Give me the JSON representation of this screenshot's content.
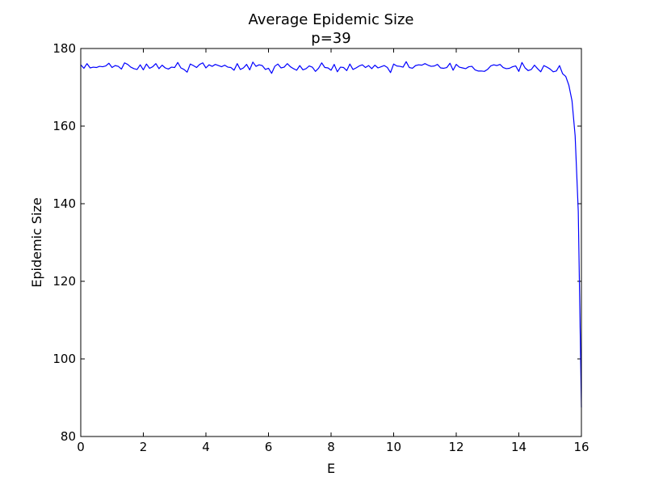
{
  "chart_data": {
    "type": "line",
    "title": "Average Epidemic Size",
    "subtitle": "p=39",
    "xlabel": "E",
    "ylabel": "Epidemic Size",
    "xlim": [
      0,
      16
    ],
    "ylim": [
      80,
      180
    ],
    "xticks": [
      0,
      2,
      4,
      6,
      8,
      10,
      12,
      14,
      16
    ],
    "yticks": [
      80,
      100,
      120,
      140,
      160,
      180
    ],
    "grid": false,
    "legend": "none",
    "series": [
      {
        "color": "#0000ff",
        "x": [
          0.0,
          0.1,
          0.2,
          0.3,
          0.4,
          0.5,
          0.6,
          0.7,
          0.8,
          0.9,
          1.0,
          1.1,
          1.2,
          1.3,
          1.4,
          1.5,
          1.6,
          1.7,
          1.8,
          1.9,
          2.0,
          2.1,
          2.2,
          2.3,
          2.4,
          2.5,
          2.6,
          2.7,
          2.8,
          2.9,
          3.0,
          3.1,
          3.2,
          3.3,
          3.4,
          3.5,
          3.6,
          3.7,
          3.8,
          3.9,
          4.0,
          4.1,
          4.2,
          4.3,
          4.4,
          4.5,
          4.6,
          4.7,
          4.8,
          4.9,
          5.0,
          5.1,
          5.2,
          5.3,
          5.4,
          5.5,
          5.6,
          5.7,
          5.8,
          5.9,
          6.0,
          6.1,
          6.2,
          6.3,
          6.4,
          6.5,
          6.6,
          6.7,
          6.8,
          6.9,
          7.0,
          7.1,
          7.2,
          7.3,
          7.4,
          7.5,
          7.6,
          7.7,
          7.8,
          7.9,
          8.0,
          8.1,
          8.2,
          8.3,
          8.4,
          8.5,
          8.6,
          8.7,
          8.8,
          8.9,
          9.0,
          9.1,
          9.2,
          9.3,
          9.4,
          9.5,
          9.6,
          9.7,
          9.8,
          9.9,
          10.0,
          10.1,
          10.2,
          10.3,
          10.4,
          10.5,
          10.6,
          10.7,
          10.8,
          10.9,
          11.0,
          11.1,
          11.2,
          11.3,
          11.4,
          11.5,
          11.6,
          11.7,
          11.8,
          11.9,
          12.0,
          12.1,
          12.2,
          12.3,
          12.4,
          12.5,
          12.6,
          12.7,
          12.8,
          12.9,
          13.0,
          13.1,
          13.2,
          13.3,
          13.4,
          13.5,
          13.6,
          13.7,
          13.8,
          13.9,
          14.0,
          14.1,
          14.2,
          14.3,
          14.4,
          14.5,
          14.6,
          14.7,
          14.8,
          14.9,
          15.0,
          15.1,
          15.2,
          15.3,
          15.4,
          15.5,
          15.6,
          15.7,
          15.8,
          15.9,
          16.0
        ],
        "y": [
          175.8,
          174.9,
          176.1,
          175.0,
          175.2,
          175.1,
          175.4,
          175.3,
          175.5,
          176.2,
          175.1,
          175.6,
          175.4,
          174.7,
          176.3,
          175.9,
          175.2,
          174.8,
          174.6,
          175.8,
          174.5,
          176.0,
          174.9,
          175.3,
          176.1,
          174.8,
          175.7,
          175.0,
          174.7,
          175.2,
          175.1,
          176.4,
          175.0,
          174.6,
          173.9,
          176.0,
          175.6,
          175.1,
          175.9,
          176.3,
          175.0,
          175.8,
          175.4,
          175.9,
          175.6,
          175.3,
          175.7,
          175.2,
          175.1,
          174.4,
          176.1,
          174.6,
          175.0,
          175.9,
          174.5,
          176.5,
          175.4,
          175.8,
          175.6,
          174.6,
          174.9,
          173.6,
          175.4,
          176.0,
          175.0,
          175.2,
          176.1,
          175.3,
          174.8,
          174.4,
          175.6,
          174.5,
          174.8,
          175.5,
          175.2,
          174.1,
          174.9,
          176.3,
          175.1,
          175.0,
          174.4,
          175.9,
          174.0,
          175.2,
          175.1,
          174.3,
          176.0,
          174.6,
          175.0,
          175.5,
          175.8,
          175.1,
          175.6,
          174.8,
          175.7,
          175.0,
          175.3,
          175.6,
          175.1,
          173.8,
          176.0,
          175.5,
          175.4,
          175.2,
          176.6,
          175.1,
          174.9,
          175.6,
          175.8,
          175.7,
          176.1,
          175.7,
          175.4,
          175.5,
          175.9,
          175.0,
          174.9,
          175.1,
          176.2,
          174.4,
          175.9,
          175.2,
          175.0,
          174.8,
          175.3,
          175.4,
          174.5,
          174.2,
          174.2,
          174.1,
          174.6,
          175.5,
          175.8,
          175.6,
          175.9,
          175.1,
          174.8,
          174.9,
          175.3,
          175.5,
          174.1,
          176.4,
          175.0,
          174.3,
          174.6,
          175.7,
          174.8,
          174.0,
          175.6,
          175.2,
          174.7,
          174.0,
          174.2,
          175.6,
          173.5,
          172.8,
          170.5,
          166.5,
          157.5,
          138.0,
          87.5
        ]
      }
    ]
  }
}
